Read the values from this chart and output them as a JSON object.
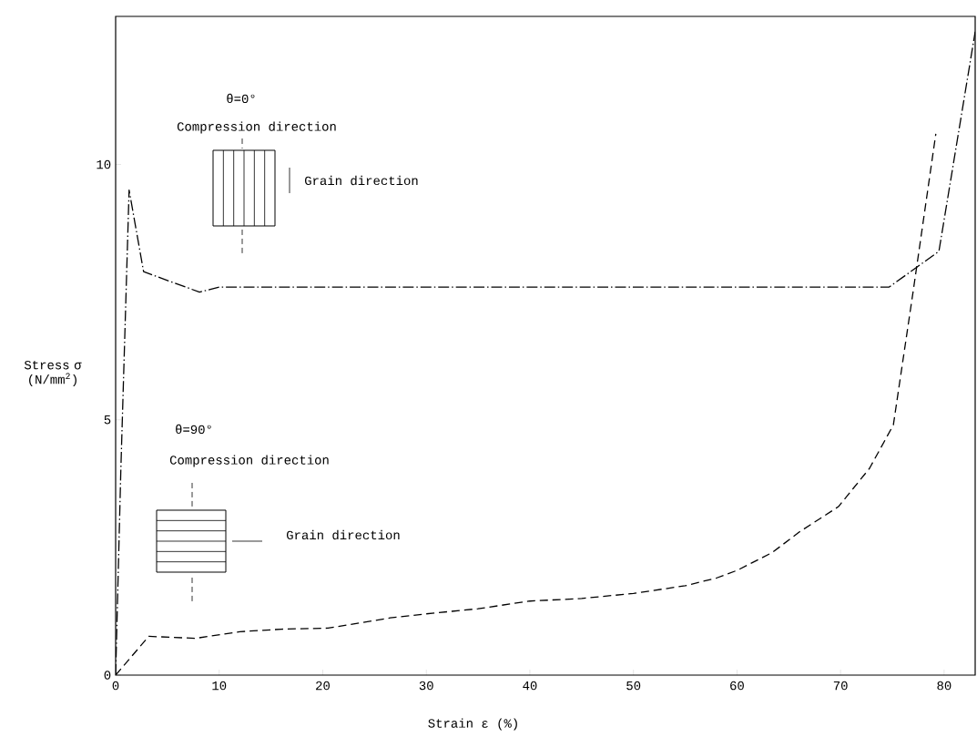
{
  "chart_data": {
    "type": "line",
    "xlabel": "Strain ε (%)",
    "ylabel": "Stress σ (N/mm$^{2}$)",
    "xlim": [
      0,
      83
    ],
    "ylim": [
      0,
      12.9
    ],
    "xticks": [
      0,
      10,
      20,
      30,
      40,
      50,
      60,
      70,
      80
    ],
    "yticks": [
      0,
      5,
      10
    ],
    "grid": false,
    "marker": "none",
    "annotations": [
      "θ=0°",
      "Compression direction",
      "Grain direction",
      "θ=90°",
      "Compression direction",
      "Grain direction"
    ],
    "series": [
      {
        "color": "#000000",
        "line_style": "dashdot",
        "x": [
          0,
          0.5,
          1.3,
          2.7,
          8.1,
          10,
          20,
          30,
          40,
          50,
          60,
          70,
          74.7,
          79.5,
          83
        ],
        "values": [
          0,
          4,
          9.5,
          7.9,
          7.5,
          7.6,
          7.6,
          7.6,
          7.6,
          7.6,
          7.6,
          7.6,
          7.6,
          8.3,
          12.6
        ]
      },
      {
        "color": "#000000",
        "line_style": "dashed",
        "x": [
          0,
          3.2,
          7.7,
          12,
          16,
          20.5,
          26.5,
          30,
          35,
          40,
          45,
          50,
          55,
          58,
          60,
          63.4,
          66,
          69.8,
          72.8,
          75.1,
          77,
          79.2
        ],
        "values": [
          0,
          0.76,
          0.72,
          0.85,
          0.9,
          0.92,
          1.12,
          1.2,
          1.3,
          1.45,
          1.5,
          1.6,
          1.75,
          1.9,
          2.05,
          2.4,
          2.8,
          3.3,
          4.05,
          4.9,
          7.5,
          10.6
        ]
      }
    ]
  }
}
